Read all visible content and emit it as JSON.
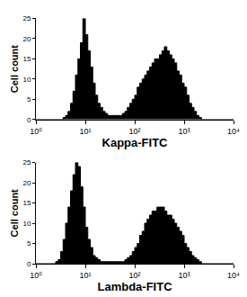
{
  "chart_data": [
    {
      "type": "histogram",
      "x_label": "Kappa-FITC",
      "y_label": "Cell count",
      "color": "#000000",
      "log": "x",
      "xlim": [
        1,
        10000
      ],
      "xticks": [
        {
          "value": 1,
          "label": "10⁰"
        },
        {
          "value": 10,
          "label": "10¹"
        },
        {
          "value": 100,
          "label": "10²"
        },
        {
          "value": 1000,
          "label": "10³"
        },
        {
          "value": 10000,
          "label": "10⁴"
        }
      ],
      "ylim": [
        0,
        25
      ],
      "yticks": [
        0,
        5,
        10,
        15,
        20,
        25
      ],
      "bins": [
        1,
        1.122,
        1.259,
        1.413,
        1.585,
        1.778,
        1.995,
        2.239,
        2.512,
        2.818,
        3.162,
        3.548,
        3.981,
        4.467,
        5.012,
        5.623,
        6.31,
        7.079,
        7.943,
        8.913,
        10,
        11.22,
        12.59,
        14.13,
        15.85,
        17.78,
        19.95,
        22.39,
        25.12,
        28.18,
        31.62,
        35.48,
        39.81,
        44.67,
        50.12,
        56.23,
        63.1,
        70.79,
        79.43,
        89.13,
        100,
        112.2,
        125.9,
        141.3,
        158.5,
        177.8,
        199.5,
        223.9,
        251.2,
        281.8,
        316.2,
        354.8,
        398.1,
        446.7,
        501.2,
        562.3,
        631,
        707.9,
        794.3,
        891.3,
        1000,
        1122,
        1259,
        1413,
        1585,
        1778,
        1995,
        2239,
        2512,
        2818,
        3162,
        3548,
        3981,
        4467,
        5012,
        5623,
        6310,
        7079,
        7943,
        8913,
        10000
      ],
      "values": [
        0,
        0,
        0,
        0,
        0,
        0,
        0,
        0,
        0,
        0,
        0,
        0.5,
        1,
        2,
        4,
        7,
        11,
        15,
        19,
        25,
        21,
        17,
        13,
        9,
        6,
        4,
        3,
        2,
        1.5,
        1,
        1,
        1,
        1,
        1,
        1,
        1.5,
        2,
        3,
        4,
        5,
        6,
        8,
        9,
        10,
        11,
        12,
        13,
        14,
        15,
        15,
        16,
        17,
        18,
        17,
        16,
        15,
        14,
        12,
        11,
        9,
        8,
        6,
        4,
        3,
        2,
        1,
        0.5,
        0,
        0,
        0,
        0,
        0,
        0,
        0,
        0,
        0,
        0,
        0,
        0,
        0
      ]
    },
    {
      "type": "histogram",
      "x_label": "Lambda-FITC",
      "y_label": "Cell count",
      "color": "#000000",
      "log": "x",
      "xlim": [
        1,
        10000
      ],
      "xticks": [
        {
          "value": 1,
          "label": "10⁰"
        },
        {
          "value": 10,
          "label": "10¹"
        },
        {
          "value": 100,
          "label": "10²"
        },
        {
          "value": 1000,
          "label": "10³"
        },
        {
          "value": 10000,
          "label": "10⁴"
        }
      ],
      "ylim": [
        0,
        25
      ],
      "yticks": [
        0,
        5,
        10,
        15,
        20,
        25
      ],
      "bins": [
        1,
        1.122,
        1.259,
        1.413,
        1.585,
        1.778,
        1.995,
        2.239,
        2.512,
        2.818,
        3.162,
        3.548,
        3.981,
        4.467,
        5.012,
        5.623,
        6.31,
        7.079,
        7.943,
        8.913,
        10,
        11.22,
        12.59,
        14.13,
        15.85,
        17.78,
        19.95,
        22.39,
        25.12,
        28.18,
        31.62,
        35.48,
        39.81,
        44.67,
        50.12,
        56.23,
        63.1,
        70.79,
        79.43,
        89.13,
        100,
        112.2,
        125.9,
        141.3,
        158.5,
        177.8,
        199.5,
        223.9,
        251.2,
        281.8,
        316.2,
        354.8,
        398.1,
        446.7,
        501.2,
        562.3,
        631,
        707.9,
        794.3,
        891.3,
        1000,
        1122,
        1259,
        1413,
        1585,
        1778,
        1995,
        2239,
        2512,
        2818,
        3162,
        3548,
        3981,
        4467,
        5012,
        5623,
        6310,
        7079,
        7943,
        8913,
        10000
      ],
      "values": [
        0,
        0,
        0,
        0,
        0,
        0,
        0,
        0,
        0.5,
        1,
        3,
        6,
        10,
        14,
        18,
        22,
        25,
        24,
        19,
        14,
        9,
        6,
        4,
        2,
        1.5,
        1,
        0.5,
        0.5,
        0.5,
        0.5,
        0.5,
        0.5,
        0.5,
        0.5,
        0.5,
        0.5,
        1,
        1.5,
        2,
        3,
        4,
        5,
        7,
        8,
        10,
        11,
        12,
        13,
        13,
        14,
        14,
        14,
        13,
        12,
        12,
        11,
        10,
        9,
        8,
        7,
        5,
        4,
        3,
        2,
        1.5,
        1,
        0.5,
        0,
        0,
        0,
        0,
        0,
        0,
        0,
        0,
        0,
        0,
        0,
        0,
        0
      ]
    }
  ]
}
